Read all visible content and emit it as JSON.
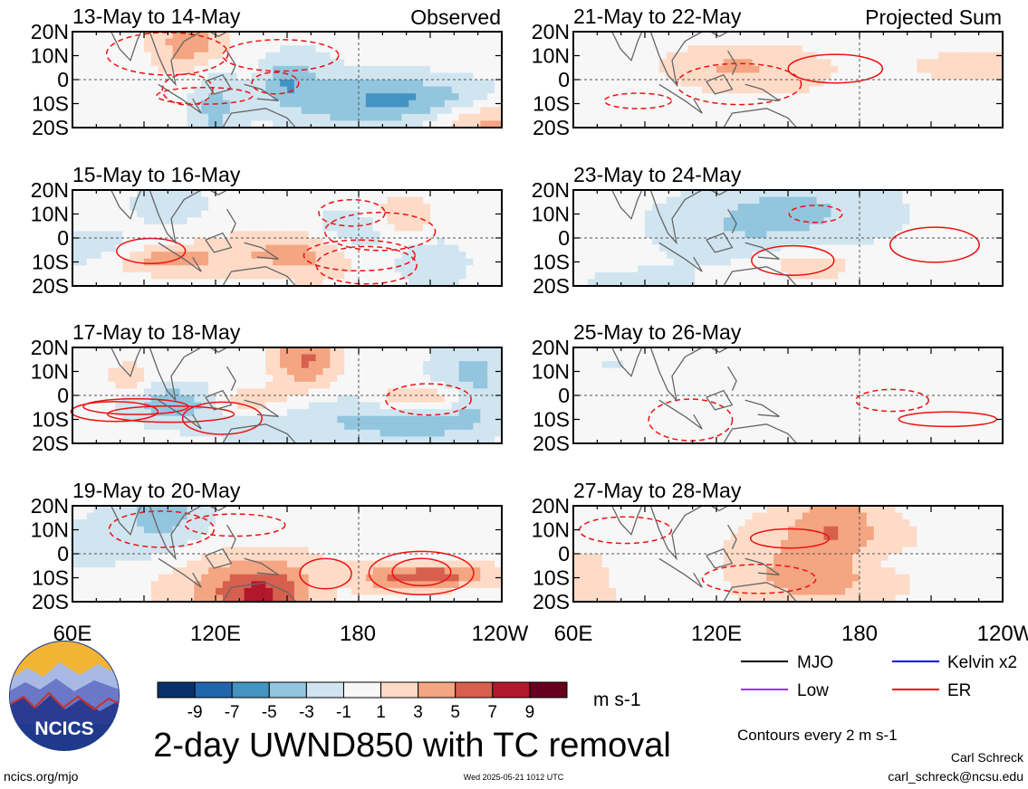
{
  "chart_data": {
    "type": "heatmap",
    "variable_title": "2-day UWND850 with TC removal",
    "units": "m s-1",
    "contour_note": "Contours every 2 m s-1",
    "column_labels": {
      "left": "Observed",
      "right": "Projected Sum"
    },
    "panels": [
      {
        "column": "left",
        "row": 0,
        "label": "13-May to 14-May"
      },
      {
        "column": "left",
        "row": 1,
        "label": "15-May to 16-May"
      },
      {
        "column": "left",
        "row": 2,
        "label": "17-May to 18-May"
      },
      {
        "column": "left",
        "row": 3,
        "label": "19-May to 20-May"
      },
      {
        "column": "right",
        "row": 0,
        "label": "21-May to 22-May"
      },
      {
        "column": "right",
        "row": 1,
        "label": "23-May to 24-May"
      },
      {
        "column": "right",
        "row": 2,
        "label": "25-May to 26-May"
      },
      {
        "column": "right",
        "row": 3,
        "label": "27-May to 28-May"
      }
    ],
    "y_ticks": [
      "20N",
      "10N",
      "0",
      "10S",
      "20S"
    ],
    "x_ticks": [
      "60E",
      "120E",
      "180",
      "120W"
    ],
    "x_range_deg": [
      60,
      240
    ],
    "y_range_deg": [
      -20,
      20
    ],
    "colorbar": {
      "labels": [
        "-9",
        "-7",
        "-5",
        "-3",
        "-1",
        "1",
        "3",
        "5",
        "7",
        "9"
      ],
      "colors": [
        "#08306b",
        "#2166ac",
        "#4393c3",
        "#92c5de",
        "#d1e5f0",
        "#f7f7f7",
        "#fddbc7",
        "#f4a582",
        "#d6604d",
        "#b2182b",
        "#67001f"
      ]
    },
    "legend": [
      {
        "name": "MJO",
        "color": "#000000"
      },
      {
        "name": "Kelvin x2",
        "color": "#0000ff"
      },
      {
        "name": "Low",
        "color": "#9933ff"
      },
      {
        "name": "ER",
        "color": "#ff0000"
      }
    ]
  },
  "footer": {
    "logo_text": "NCICS",
    "url": "ncics.org/mjo",
    "timestamp": "Wed 2025-05-21 1012 UTC",
    "author": "Carl Schreck",
    "email": "carl_schreck@ncsu.edu"
  }
}
